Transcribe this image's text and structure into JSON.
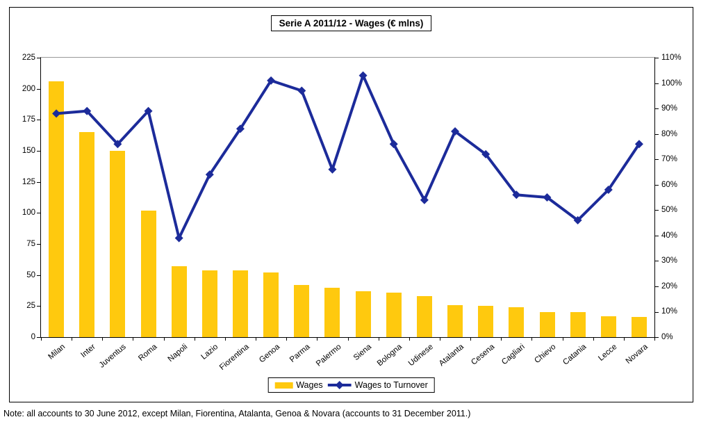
{
  "title": "Serie A 2011/12 - Wages (€ mlns)",
  "note": "Note: all accounts to 30 June 2012, except Milan, Fiorentina, Atalanta, Genoa & Novara (accounts to 31 December 2011.)",
  "legend": {
    "wages_label": "Wages",
    "ratio_label": "Wages to Turnover"
  },
  "colors": {
    "bar": "#FFC90E",
    "line": "#1C2B9A",
    "axis": "#000000",
    "plot_top_border": "#999999"
  },
  "chart_data": {
    "type": "bar+line",
    "title": "Serie A 2011/12 - Wages (€ mlns)",
    "categories": [
      "Milan",
      "Inter",
      "Juventus",
      "Roma",
      "Napoli",
      "Lazio",
      "Fiorentina",
      "Genoa",
      "Parma",
      "Palermo",
      "Siena",
      "Bologna",
      "Udinese",
      "Atalanta",
      "Cesena",
      "Cagliari",
      "Chievo",
      "Catania",
      "Lecce",
      "Novara"
    ],
    "series": [
      {
        "name": "Wages",
        "type": "bar",
        "axis": "left",
        "values": [
          206,
          165,
          150,
          102,
          57,
          54,
          54,
          52,
          42,
          40,
          37,
          36,
          33,
          26,
          25,
          24,
          20,
          20,
          17,
          16
        ]
      },
      {
        "name": "Wages to Turnover",
        "type": "line",
        "axis": "right",
        "values": [
          88,
          89,
          76,
          89,
          39,
          64,
          82,
          101,
          97,
          66,
          103,
          76,
          54,
          81,
          72,
          56,
          55,
          46,
          58,
          76
        ]
      }
    ],
    "left_axis": {
      "min": 0,
      "max": 225,
      "step": 25,
      "tick_labels": [
        "0",
        "25",
        "50",
        "75",
        "100",
        "125",
        "150",
        "175",
        "200",
        "225"
      ]
    },
    "right_axis": {
      "min": 0,
      "max": 110,
      "step": 10,
      "tick_labels": [
        "0%",
        "10%",
        "20%",
        "30%",
        "40%",
        "50%",
        "60%",
        "70%",
        "80%",
        "90%",
        "100%",
        "110%"
      ]
    },
    "grid": "off",
    "legend_position": "bottom-center"
  }
}
